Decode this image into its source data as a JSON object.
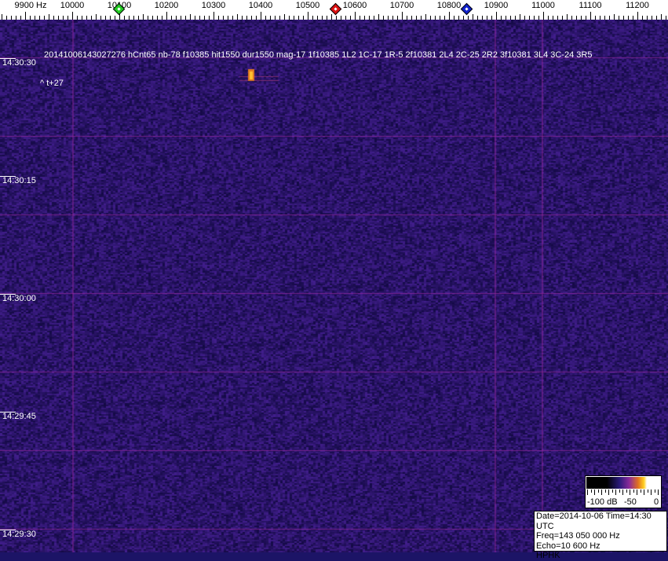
{
  "frequency_axis": {
    "unit_label": "9900 Hz",
    "ticks": [
      "10000",
      "10100",
      "10200",
      "10300",
      "10400",
      "10500",
      "10600",
      "10700",
      "10800",
      "10900",
      "11000",
      "11100",
      "11200"
    ]
  },
  "markers": [
    {
      "name": "green-marker",
      "color": "#22cc22",
      "freq_hz": 10100
    },
    {
      "name": "red-marker",
      "color": "#dd1111",
      "freq_hz": 10560
    },
    {
      "name": "blue-marker",
      "color": "#1122cc",
      "freq_hz": 10838
    }
  ],
  "time_labels": [
    "14:30:30",
    "14:30:15",
    "14:30:00",
    "14:29:45",
    "14:29:30"
  ],
  "detection_info": "20141006143027276 hCnt65 nb-78 f10385 hit1550 dur1550 mag-17  1f10385  1L2  1C-17  1R-5  2f10381  2L4  2C-25  2R2  3f10381  3L4  3C-24  3R5",
  "time_offset": "^ t+27",
  "colorbar": {
    "labels": [
      "-100 dB",
      "-50",
      "0"
    ]
  },
  "info_box": {
    "date_time": "Date=2014-10-06 Time=14:30 UTC",
    "freq": "Freq=143 050 000 Hz",
    "echo": "Echo=10 600 Hz",
    "station": "HPHK"
  },
  "colors": {
    "background": "#1c1466",
    "grid": "#8a2a9a",
    "echo": "#ffb020"
  }
}
